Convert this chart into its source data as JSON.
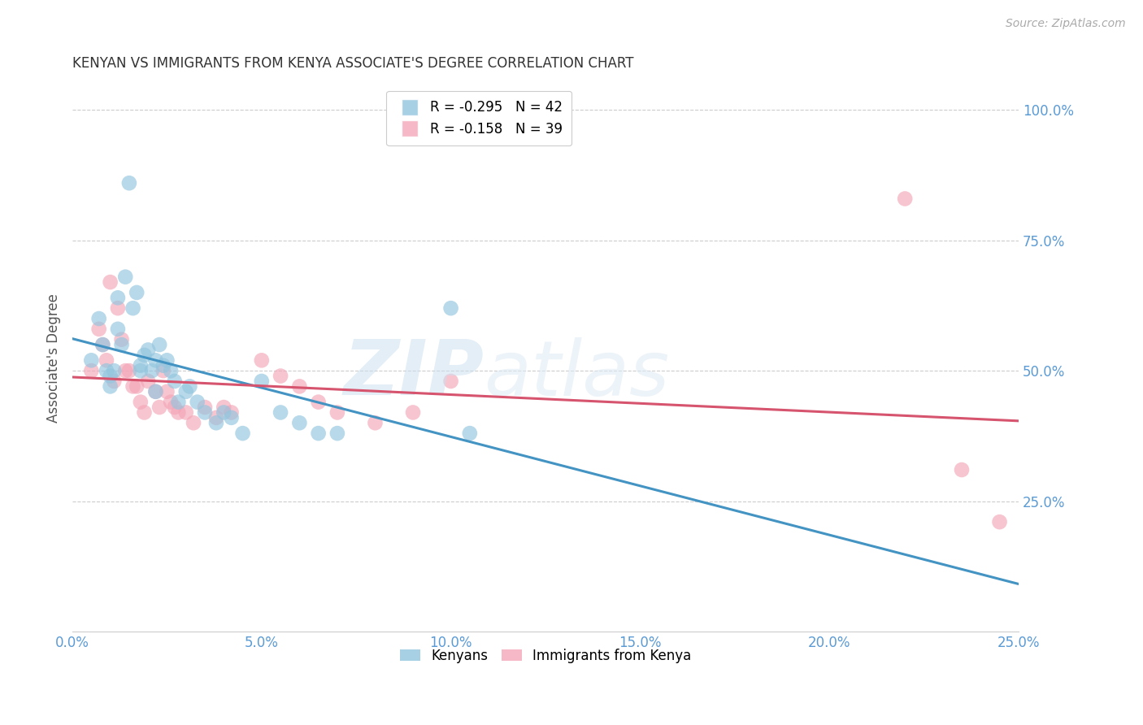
{
  "title": "KENYAN VS IMMIGRANTS FROM KENYA ASSOCIATE'S DEGREE CORRELATION CHART",
  "source": "Source: ZipAtlas.com",
  "ylabel": "Associate's Degree",
  "xlim": [
    0.0,
    0.25
  ],
  "ylim": [
    0.0,
    1.05
  ],
  "ytick_labels": [
    "25.0%",
    "50.0%",
    "75.0%",
    "100.0%"
  ],
  "ytick_values": [
    0.25,
    0.5,
    0.75,
    1.0
  ],
  "xtick_labels": [
    "0.0%",
    "5.0%",
    "10.0%",
    "15.0%",
    "20.0%",
    "25.0%"
  ],
  "xtick_values": [
    0.0,
    0.05,
    0.1,
    0.15,
    0.2,
    0.25
  ],
  "blue_color": "#92c5de",
  "pink_color": "#f4a6b8",
  "blue_line_color": "#4393c3",
  "pink_line_color": "#d6546e",
  "axis_color": "#5b9bd5",
  "background_color": "#ffffff",
  "kenyans_x": [
    0.005,
    0.007,
    0.008,
    0.009,
    0.01,
    0.01,
    0.011,
    0.012,
    0.012,
    0.013,
    0.014,
    0.015,
    0.016,
    0.017,
    0.018,
    0.018,
    0.019,
    0.02,
    0.021,
    0.022,
    0.022,
    0.023,
    0.024,
    0.025,
    0.026,
    0.027,
    0.028,
    0.03,
    0.031,
    0.033,
    0.035,
    0.038,
    0.04,
    0.042,
    0.045,
    0.05,
    0.055,
    0.06,
    0.065,
    0.07,
    0.1,
    0.105
  ],
  "kenyans_y": [
    0.52,
    0.6,
    0.55,
    0.5,
    0.49,
    0.47,
    0.5,
    0.64,
    0.58,
    0.55,
    0.68,
    0.86,
    0.62,
    0.65,
    0.51,
    0.5,
    0.53,
    0.54,
    0.5,
    0.52,
    0.46,
    0.55,
    0.51,
    0.52,
    0.5,
    0.48,
    0.44,
    0.46,
    0.47,
    0.44,
    0.42,
    0.4,
    0.42,
    0.41,
    0.38,
    0.48,
    0.42,
    0.4,
    0.38,
    0.38,
    0.62,
    0.38
  ],
  "immigrants_x": [
    0.005,
    0.007,
    0.008,
    0.009,
    0.01,
    0.011,
    0.012,
    0.013,
    0.014,
    0.015,
    0.016,
    0.017,
    0.018,
    0.019,
    0.02,
    0.022,
    0.023,
    0.024,
    0.025,
    0.026,
    0.027,
    0.028,
    0.03,
    0.032,
    0.035,
    0.038,
    0.04,
    0.042,
    0.05,
    0.055,
    0.06,
    0.065,
    0.07,
    0.08,
    0.09,
    0.1,
    0.22,
    0.235,
    0.245
  ],
  "immigrants_y": [
    0.5,
    0.58,
    0.55,
    0.52,
    0.67,
    0.48,
    0.62,
    0.56,
    0.5,
    0.5,
    0.47,
    0.47,
    0.44,
    0.42,
    0.48,
    0.46,
    0.43,
    0.5,
    0.46,
    0.44,
    0.43,
    0.42,
    0.42,
    0.4,
    0.43,
    0.41,
    0.43,
    0.42,
    0.52,
    0.49,
    0.47,
    0.44,
    0.42,
    0.4,
    0.42,
    0.48,
    0.83,
    0.31,
    0.21
  ]
}
